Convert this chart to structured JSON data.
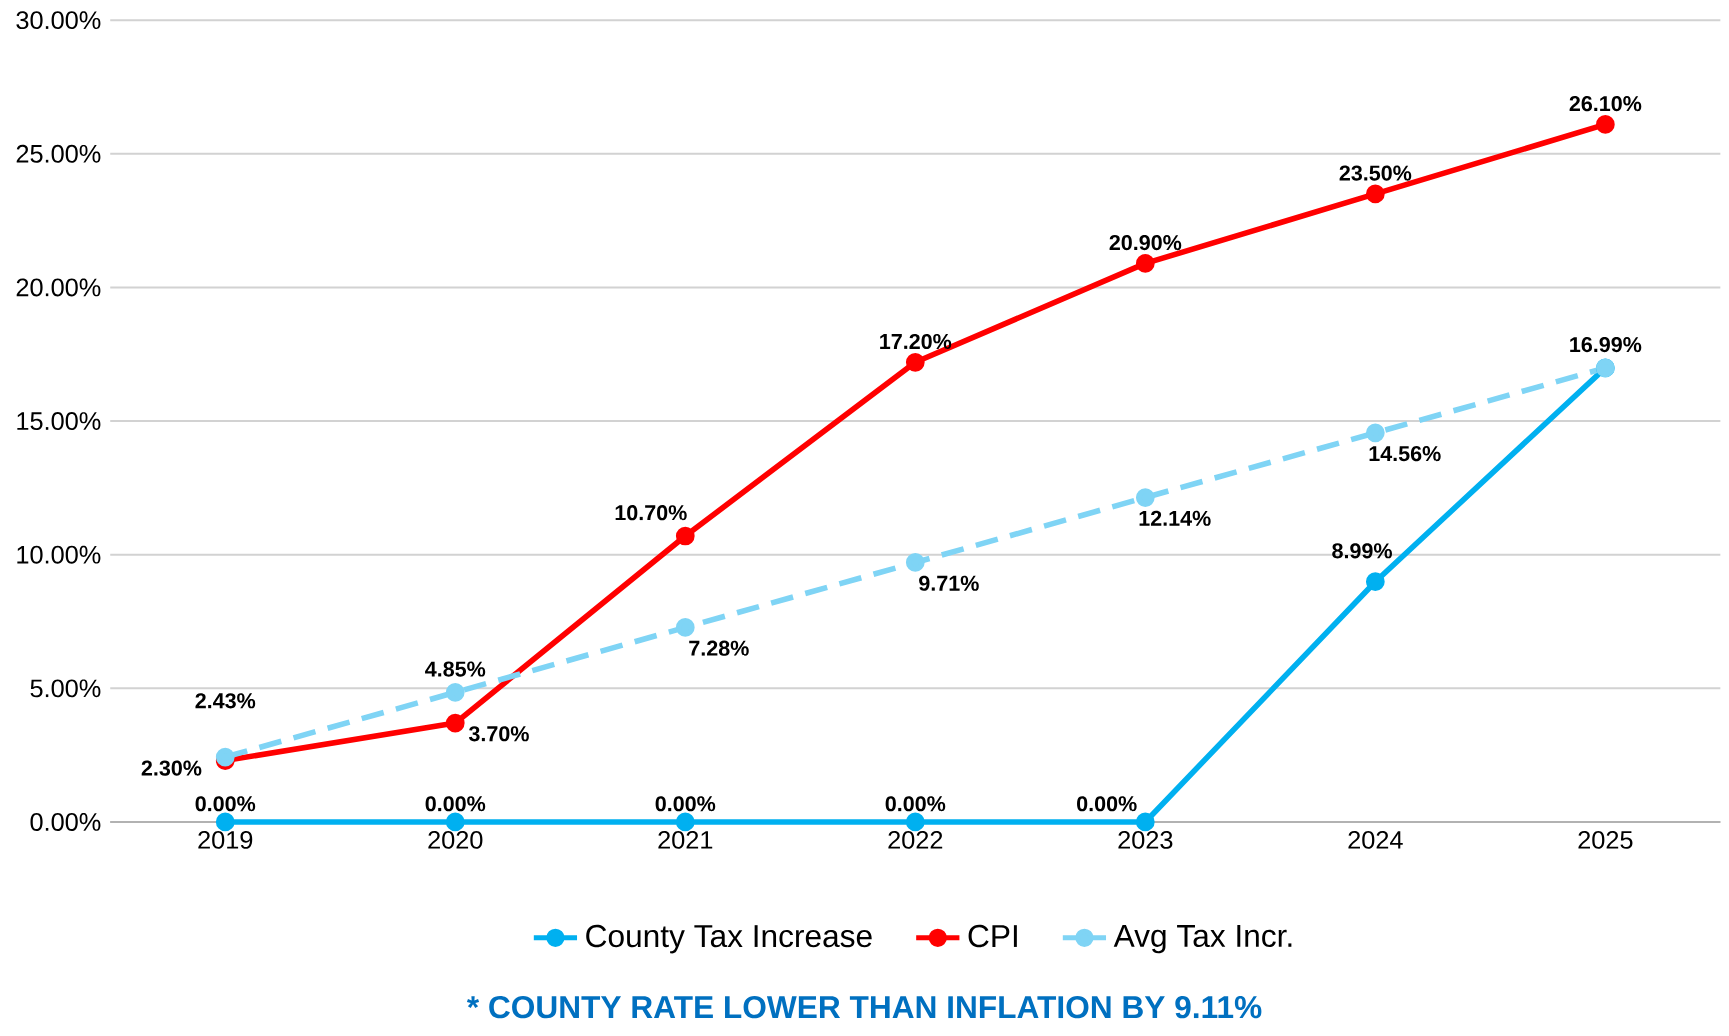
{
  "chart_data": {
    "type": "line",
    "categories": [
      "2019",
      "2020",
      "2021",
      "2022",
      "2023",
      "2024",
      "2025"
    ],
    "series": [
      {
        "name": "County Tax Increase",
        "color": "#00b0f0",
        "line_style": "solid",
        "values": [
          0,
          0,
          0,
          0,
          0,
          8.99,
          16.99
        ],
        "value_labels": [
          "0.00%",
          "0.00%",
          "0.00%",
          "0.00%",
          "0.00%",
          "8.99%",
          "16.99%"
        ]
      },
      {
        "name": "CPI",
        "color": "#ff0000",
        "line_style": "solid",
        "values": [
          2.3,
          3.7,
          10.7,
          17.2,
          20.9,
          23.5,
          26.1
        ],
        "value_labels": [
          "2.30%",
          "3.70%",
          "10.70%",
          "17.20%",
          "20.90%",
          "23.50%",
          "26.10%"
        ]
      },
      {
        "name": "Avg Tax Incr.",
        "color": "#7fd4f5",
        "line_style": "dashed",
        "values": [
          2.43,
          4.85,
          7.28,
          9.71,
          12.14,
          14.56,
          16.99
        ],
        "value_labels": [
          "2.43%",
          "4.85%",
          "7.28%",
          "9.71%",
          "12.14%",
          "14.56%",
          null
        ]
      }
    ],
    "ylim": [
      0,
      30
    ],
    "yticks": [
      {
        "value": 0,
        "label": "0.00%"
      },
      {
        "value": 5,
        "label": "5.00%"
      },
      {
        "value": 10,
        "label": "10.00%"
      },
      {
        "value": 15,
        "label": "15.00%"
      },
      {
        "value": 20,
        "label": "20.00%"
      },
      {
        "value": 25,
        "label": "25.00%"
      },
      {
        "value": 30,
        "label": "30.00%"
      }
    ],
    "grid": "y",
    "legend": "bottom",
    "marker": "circle",
    "annotations": [
      "* COUNTY RATE LOWER THAN INFLATION BY 9.11%"
    ]
  }
}
